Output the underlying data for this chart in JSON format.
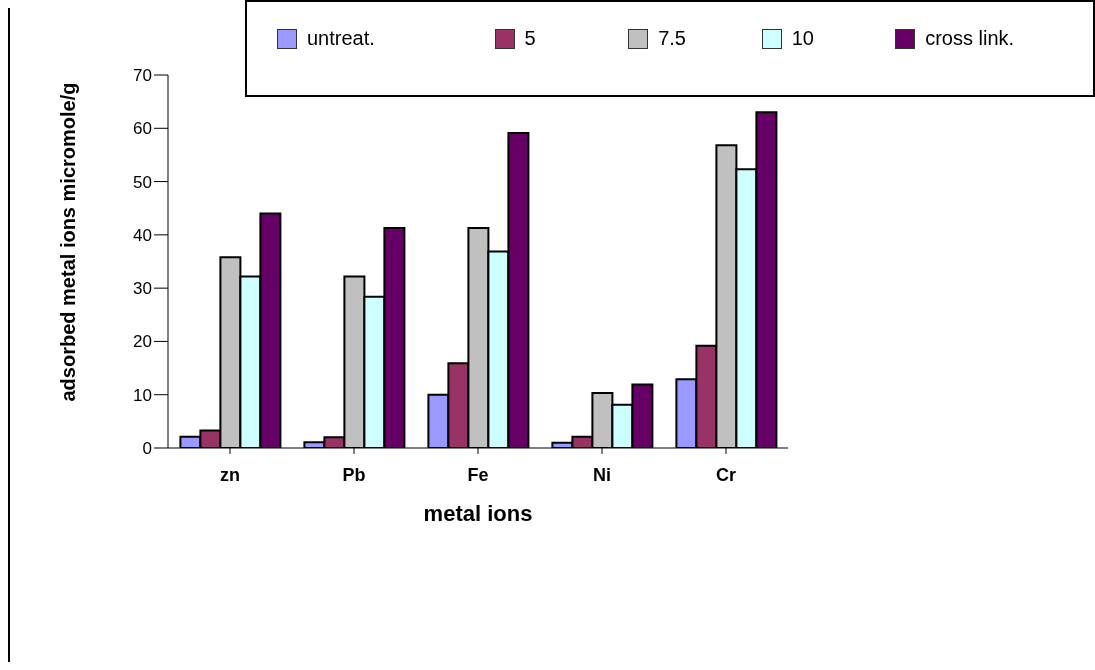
{
  "chart_data": {
    "type": "bar",
    "xlabel": "metal ions",
    "ylabel": "adsorbed metal ions micromole/g",
    "categories": [
      "zn",
      "Pb",
      "Fe",
      "Ni",
      "Cr"
    ],
    "series": [
      {
        "name": "untreat.",
        "color": "#9999ff",
        "values": [
          2.1,
          1.1,
          10.0,
          1.0,
          12.9
        ]
      },
      {
        "name": "5",
        "color": "#993366",
        "values": [
          3.3,
          2.0,
          15.9,
          2.1,
          19.2
        ]
      },
      {
        "name": "7.5",
        "color": "#c0c0c0",
        "values": [
          35.8,
          32.2,
          41.3,
          10.3,
          56.8
        ]
      },
      {
        "name": "10",
        "color": "#ccffff",
        "values": [
          32.2,
          28.4,
          36.9,
          8.1,
          52.3
        ]
      },
      {
        "name": "cross link.",
        "color": "#660066",
        "values": [
          44.0,
          41.3,
          59.1,
          11.9,
          63.0
        ]
      }
    ],
    "ylim": [
      0,
      70
    ],
    "yticks": [
      0,
      10,
      20,
      30,
      40,
      50,
      60,
      70
    ],
    "grid": false,
    "legend": "top"
  }
}
